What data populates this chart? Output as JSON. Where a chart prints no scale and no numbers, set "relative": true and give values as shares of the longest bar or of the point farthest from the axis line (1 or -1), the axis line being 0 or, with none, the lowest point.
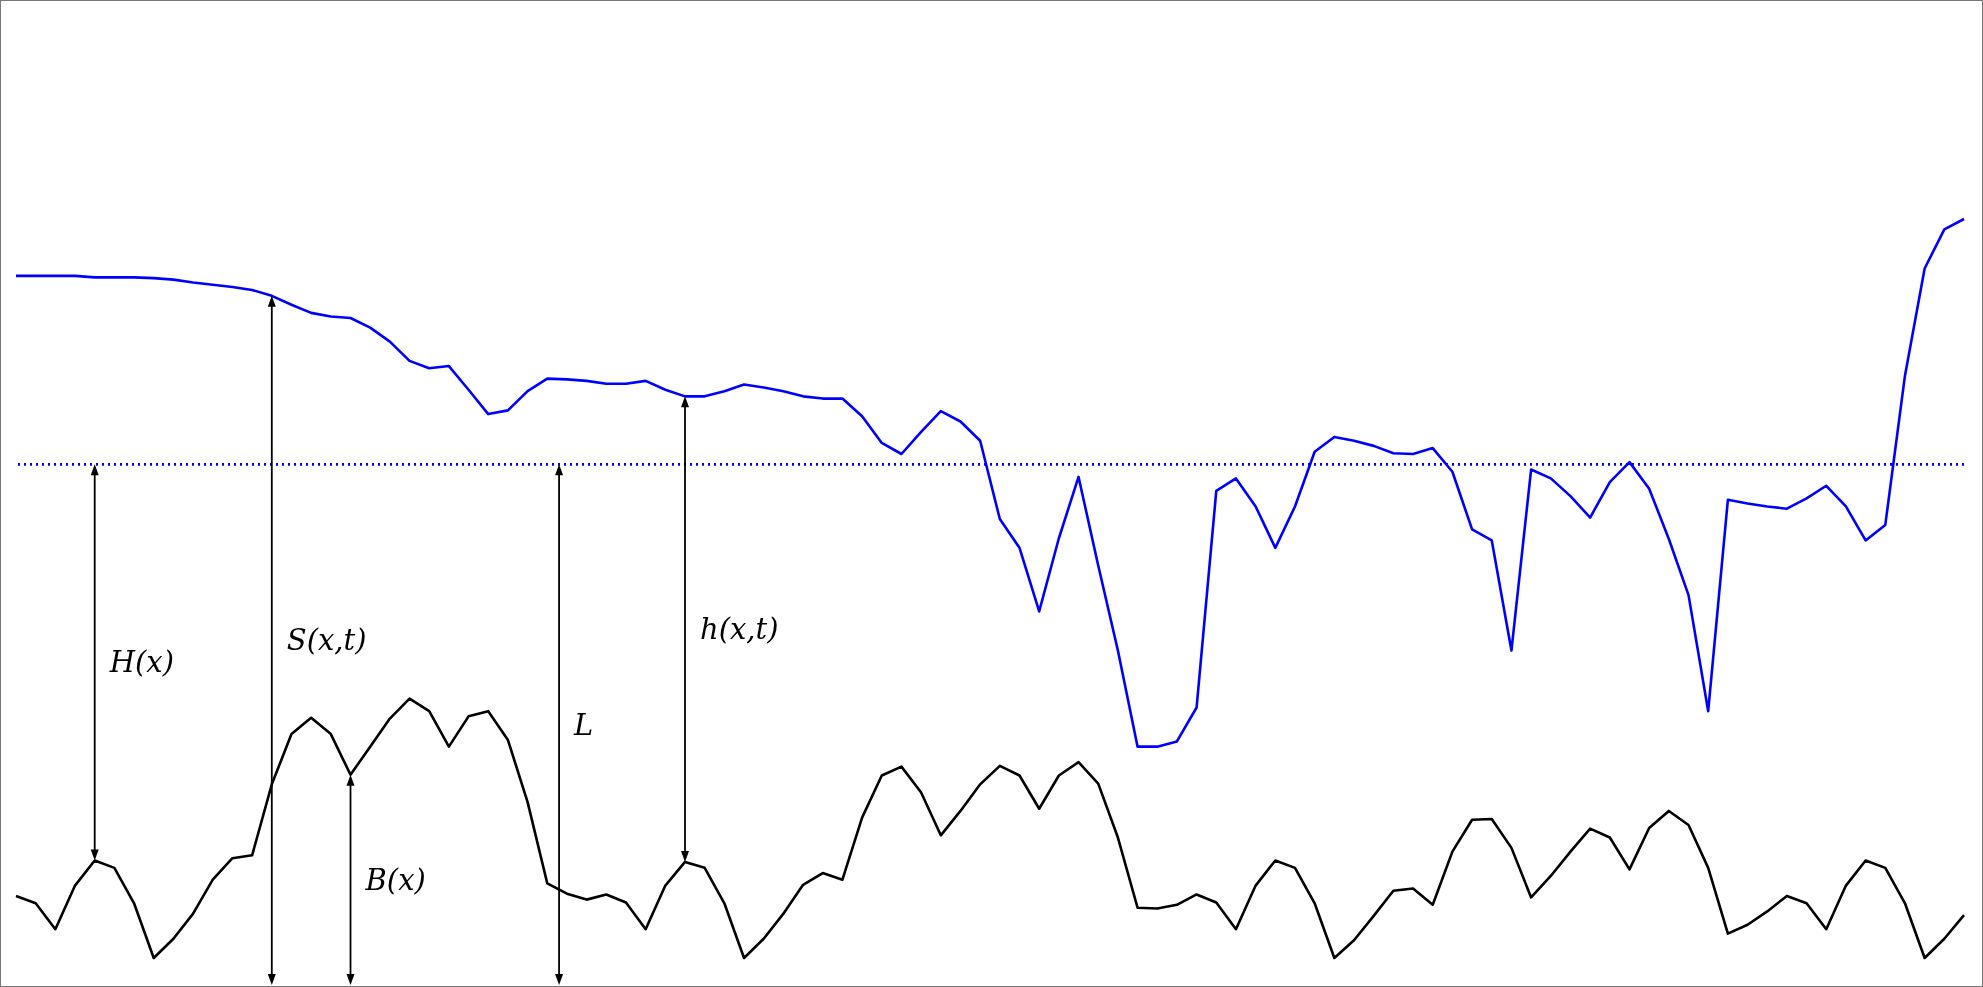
{
  "chart_data": {
    "type": "line",
    "relative": true,
    "categories": [
      null,
      null,
      null,
      null,
      null,
      null,
      null,
      null,
      null,
      null,
      null,
      null,
      null,
      null,
      null,
      null,
      null,
      null,
      null,
      null,
      null,
      null,
      null,
      null,
      null,
      null,
      null,
      null,
      null,
      null,
      null,
      null,
      null,
      null,
      null,
      null,
      null,
      null,
      null,
      null,
      null,
      null,
      null,
      null,
      null,
      null,
      null,
      null,
      null,
      null,
      null,
      null,
      null,
      null,
      null,
      null,
      null,
      null,
      null,
      null,
      null,
      null,
      null,
      null,
      null,
      null,
      null,
      null,
      null,
      null,
      null,
      null,
      null,
      null,
      null,
      null,
      null,
      null,
      null,
      null,
      null,
      null,
      null,
      null,
      null,
      null,
      null,
      null,
      null,
      null,
      null,
      null,
      null,
      null,
      null,
      null,
      null,
      null,
      null,
      null
    ],
    "series": [
      {
        "color": "#0000ff",
        "values": [
          0.923,
          0.923,
          0.923,
          0.923,
          0.921,
          0.921,
          0.921,
          0.92,
          0.918,
          0.914,
          0.911,
          0.908,
          0.904,
          0.896,
          0.884,
          0.873,
          0.868,
          0.866,
          0.853,
          0.834,
          0.808,
          0.798,
          0.801,
          0.769,
          0.736,
          0.741,
          0.767,
          0.784,
          0.783,
          0.781,
          0.777,
          0.777,
          0.781,
          0.769,
          0.76,
          0.76,
          0.767,
          0.776,
          0.772,
          0.767,
          0.76,
          0.757,
          0.757,
          0.733,
          0.697,
          0.682,
          0.712,
          0.74,
          0.726,
          0.7,
          0.594,
          0.555,
          0.469,
          0.568,
          0.651,
          0.531,
          0.416,
          0.286,
          0.286,
          0.293,
          0.339,
          0.632,
          0.649,
          0.611,
          0.555,
          0.611,
          0.685,
          0.705,
          0.7,
          0.693,
          0.683,
          0.682,
          0.69,
          0.658,
          0.58,
          0.565,
          0.416,
          0.661,
          0.649,
          0.625,
          0.596,
          0.644,
          0.671,
          0.635,
          0.567,
          0.491,
          0.334,
          0.62,
          0.615,
          0.611,
          0.608,
          0.622,
          0.639,
          0.611,
          0.565,
          0.586,
          0.788,
          0.933,
          0.986,
          1
        ]
      },
      {
        "color": "#000000",
        "values": [
          0.084,
          0.074,
          0.039,
          0.098,
          0.132,
          0.122,
          0.074,
          0,
          0.026,
          0.06,
          0.106,
          0.135,
          0.139,
          0.235,
          0.303,
          0.325,
          0.303,
          0.248,
          0.286,
          0.324,
          0.351,
          0.334,
          0.286,
          0.327,
          0.334,
          0.295,
          0.211,
          0.101,
          0.087,
          0.079,
          0.086,
          0.075,
          0.039,
          0.098,
          0.13,
          0.122,
          0.074,
          0,
          0.026,
          0.06,
          0.099,
          0.115,
          0.106,
          0.19,
          0.247,
          0.259,
          0.224,
          0.166,
          0.199,
          0.235,
          0.26,
          0.247,
          0.202,
          0.247,
          0.265,
          0.236,
          0.163,
          0.068,
          0.067,
          0.072,
          0.086,
          0.075,
          0.039,
          0.098,
          0.132,
          0.122,
          0.074,
          0,
          0.024,
          0.057,
          0.091,
          0.094,
          0.072,
          0.144,
          0.187,
          0.188,
          0.149,
          0.082,
          0.111,
          0.144,
          0.175,
          0.163,
          0.12,
          0.176,
          0.199,
          0.18,
          0.122,
          0.033,
          0.045,
          0.063,
          0.084,
          0.074,
          0.039,
          0.098,
          0.132,
          0.122,
          0.074,
          0,
          0.026,
          0.058
        ]
      }
    ],
    "ref_lines": [
      {
        "axis": "y",
        "value": 0.668,
        "color": "#0000ff",
        "line_style": "dotted"
      }
    ],
    "annotations": [
      "H(x)",
      "S(x,t)",
      "L",
      "h(x,t)",
      "B(x)"
    ]
  }
}
